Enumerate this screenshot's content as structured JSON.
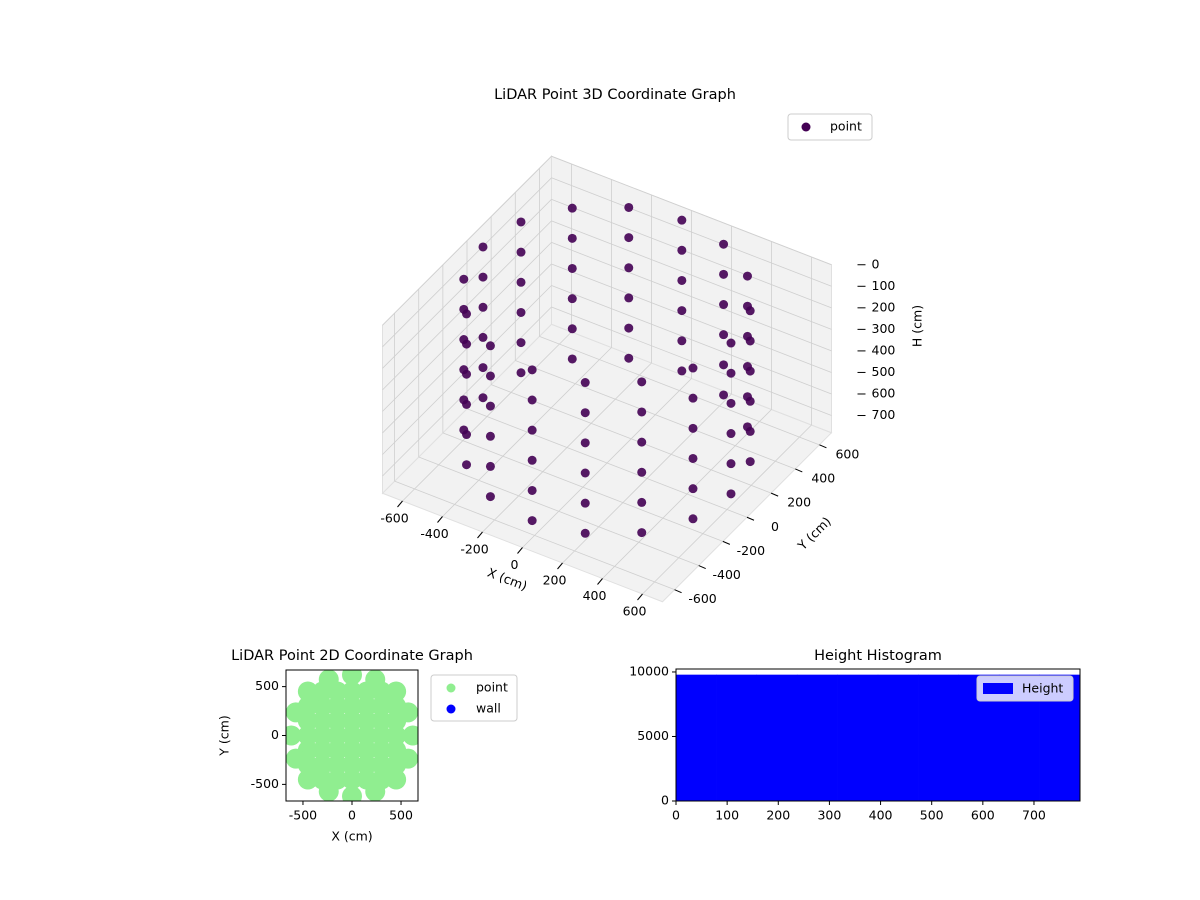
{
  "chart_data": [
    {
      "type": "scatter3d",
      "title": "LiDAR Point 3D Coordinate Graph",
      "xlabel": "X (cm)",
      "ylabel": "Y (cm)",
      "zlabel": "H (cm)",
      "xlim": [
        -700,
        700
      ],
      "ylim": [
        -700,
        700
      ],
      "zlim": [
        780,
        0
      ],
      "xticks": [
        -600,
        -400,
        -200,
        0,
        200,
        400,
        600
      ],
      "yticks": [
        -600,
        -400,
        -200,
        0,
        200,
        400,
        600
      ],
      "zticks": [
        0,
        100,
        200,
        300,
        400,
        500,
        600,
        700
      ],
      "legend": "upper right",
      "grid": true,
      "series": [
        {
          "name": "point",
          "color": "#440154",
          "x": [
            620,
            573,
            438,
            237,
            0,
            -237,
            -438,
            -573,
            -620,
            -573,
            -438,
            -237,
            0,
            237,
            438,
            573,
            620,
            573,
            438,
            237,
            0,
            -237,
            -438,
            -573,
            -620,
            -573,
            -438,
            -237,
            0,
            237,
            438,
            573,
            620,
            573,
            438,
            237,
            0,
            -237,
            -438,
            -573,
            -620,
            -573,
            -438,
            -237,
            0,
            237,
            438,
            573,
            620,
            573,
            438,
            237,
            0,
            -237,
            -438,
            -573,
            -620,
            -573,
            -438,
            -237,
            0,
            237,
            438,
            573,
            620,
            573,
            438,
            237,
            0,
            -237,
            -438,
            -573,
            -620,
            -573,
            -438,
            -237,
            0,
            237,
            438,
            573,
            620,
            573,
            438,
            237,
            0,
            -237,
            -438,
            -573,
            -620,
            -573,
            -438,
            -237,
            0,
            237,
            438,
            573
          ],
          "y": [
            0,
            237,
            438,
            573,
            620,
            573,
            438,
            237,
            0,
            -237,
            -438,
            -573,
            -620,
            -573,
            -438,
            -237,
            0,
            237,
            438,
            573,
            620,
            573,
            438,
            237,
            0,
            -237,
            -438,
            -573,
            -620,
            -573,
            -438,
            -237,
            0,
            237,
            438,
            573,
            620,
            573,
            438,
            237,
            0,
            -237,
            -438,
            -573,
            -620,
            -573,
            -438,
            -237,
            0,
            237,
            438,
            573,
            620,
            573,
            438,
            237,
            0,
            -237,
            -438,
            -573,
            -620,
            -573,
            -438,
            -237,
            0,
            237,
            438,
            573,
            620,
            573,
            438,
            237,
            0,
            -237,
            -438,
            -573,
            -620,
            -573,
            -438,
            -237,
            0,
            237,
            438,
            573,
            620,
            573,
            438,
            237,
            0,
            -237,
            -438,
            -573,
            -620,
            -573,
            -438,
            -237
          ],
          "z": [
            0,
            0,
            0,
            0,
            0,
            0,
            0,
            0,
            0,
            0,
            0,
            0,
            0,
            0,
            0,
            0,
            140,
            140,
            140,
            140,
            140,
            140,
            140,
            140,
            140,
            140,
            140,
            140,
            140,
            140,
            140,
            140,
            280,
            280,
            280,
            280,
            280,
            280,
            280,
            280,
            280,
            280,
            280,
            280,
            280,
            280,
            280,
            280,
            420,
            420,
            420,
            420,
            420,
            420,
            420,
            420,
            420,
            420,
            420,
            420,
            420,
            420,
            420,
            420,
            560,
            560,
            560,
            560,
            560,
            560,
            560,
            560,
            560,
            560,
            560,
            560,
            560,
            560,
            560,
            560,
            700,
            700,
            700,
            700,
            700,
            700,
            700,
            700,
            700,
            700,
            700,
            700,
            700,
            700,
            700,
            700
          ]
        }
      ]
    },
    {
      "type": "scatter",
      "title": "LiDAR Point 2D Coordinate Graph",
      "xlabel": "X (cm)",
      "ylabel": "Y (cm)",
      "xlim": [
        -673,
        673
      ],
      "ylim": [
        -670,
        670
      ],
      "xticks": [
        -500,
        0,
        500
      ],
      "yticks": [
        -500,
        0,
        500
      ],
      "legend": "outside right",
      "series": [
        {
          "name": "point",
          "color": "#90ee90",
          "x": [
            -450,
            -300,
            -150,
            0,
            150,
            300,
            450,
            -450,
            -300,
            -150,
            0,
            150,
            300,
            450,
            -450,
            -300,
            -150,
            0,
            150,
            300,
            450,
            -450,
            -300,
            -150,
            0,
            150,
            300,
            450,
            -450,
            -300,
            -150,
            0,
            150,
            300,
            450,
            -450,
            -300,
            -150,
            0,
            150,
            300,
            450,
            -450,
            -300,
            -150,
            0,
            150,
            300,
            450,
            620,
            573,
            438,
            237,
            0,
            -237,
            -438,
            -573,
            -620,
            -573,
            -438,
            -237,
            0,
            237,
            438,
            573
          ],
          "y": [
            -450,
            -450,
            -450,
            -450,
            -450,
            -450,
            -450,
            -300,
            -300,
            -300,
            -300,
            -300,
            -300,
            -300,
            -150,
            -150,
            -150,
            -150,
            -150,
            -150,
            -150,
            0,
            0,
            0,
            0,
            0,
            0,
            0,
            150,
            150,
            150,
            150,
            150,
            150,
            150,
            300,
            300,
            300,
            300,
            300,
            300,
            300,
            450,
            450,
            450,
            450,
            450,
            450,
            450,
            0,
            237,
            438,
            573,
            620,
            573,
            438,
            237,
            0,
            -237,
            -438,
            -573,
            -620,
            -573,
            -438,
            -237
          ]
        },
        {
          "name": "wall",
          "color": "#0000ff",
          "x": [],
          "y": []
        }
      ]
    },
    {
      "type": "histogram",
      "title": "Height Histogram",
      "bins": [
        0,
        79,
        158,
        237,
        316,
        395,
        474,
        553,
        632,
        711,
        790
      ],
      "series": [
        {
          "name": "Height",
          "color": "#0000ff",
          "values": [
            9770,
            9770,
            9770,
            9770,
            9770,
            9770,
            9770,
            9770,
            9770,
            9770
          ]
        }
      ],
      "xlim": [
        0,
        790
      ],
      "ylim": [
        0,
        10230
      ],
      "xticks": [
        0,
        100,
        200,
        300,
        400,
        500,
        600,
        700
      ],
      "yticks": [
        0,
        5000,
        10000
      ],
      "legend": "upper right"
    }
  ]
}
